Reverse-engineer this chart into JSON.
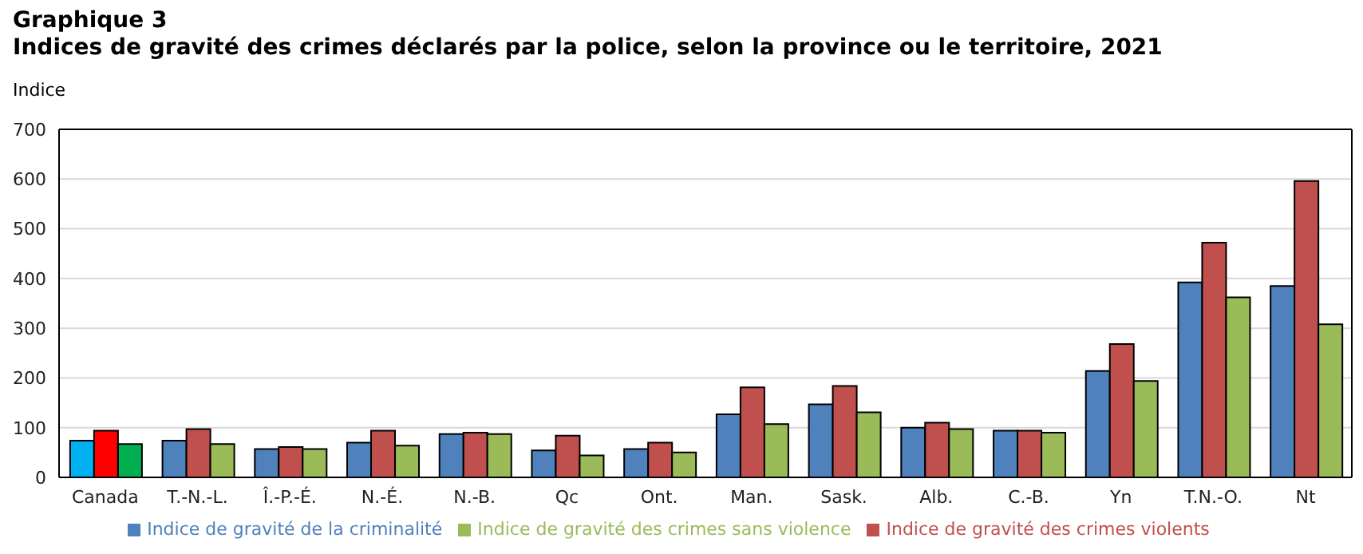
{
  "chart_data": {
    "type": "bar",
    "title": "Graphique 3",
    "subtitle": "Indices de gravité des crimes déclarés par la police, selon la province ou le territoire, 2021",
    "ylabel": "Indice",
    "categories": [
      "Canada",
      "T.-N.-L.",
      "Î.-P.-É.",
      "N.-É.",
      "N.-B.",
      "Qc",
      "Ont.",
      "Man.",
      "Sask.",
      "Alb.",
      "C.-B.",
      "Yn",
      "T.N.-O.",
      "Nt"
    ],
    "series": [
      {
        "name": "Indice de gravité de la criminalité",
        "color": "#4f81bd",
        "colors": [
          "#00b0f0",
          "#4f81bd",
          "#4f81bd",
          "#4f81bd",
          "#4f81bd",
          "#4f81bd",
          "#4f81bd",
          "#4f81bd",
          "#4f81bd",
          "#4f81bd",
          "#4f81bd",
          "#4f81bd",
          "#4f81bd",
          "#4f81bd"
        ],
        "values": [
          74,
          74,
          57,
          70,
          87,
          54,
          57,
          127,
          147,
          100,
          94,
          214,
          392,
          385
        ]
      },
      {
        "name": "Indice de gravité des crimes violents",
        "color": "#c0504d",
        "colors": [
          "#ff0000",
          "#c0504d",
          "#c0504d",
          "#c0504d",
          "#c0504d",
          "#c0504d",
          "#c0504d",
          "#c0504d",
          "#c0504d",
          "#c0504d",
          "#c0504d",
          "#c0504d",
          "#c0504d",
          "#c0504d"
        ],
        "values": [
          94,
          97,
          61,
          94,
          90,
          84,
          70,
          181,
          184,
          110,
          94,
          268,
          472,
          596
        ]
      },
      {
        "name": "Indice de gravité des crimes sans violence",
        "color": "#9bbb59",
        "colors": [
          "#00b050",
          "#9bbb59",
          "#9bbb59",
          "#9bbb59",
          "#9bbb59",
          "#9bbb59",
          "#9bbb59",
          "#9bbb59",
          "#9bbb59",
          "#9bbb59",
          "#9bbb59",
          "#9bbb59",
          "#9bbb59",
          "#9bbb59"
        ],
        "values": [
          67,
          67,
          57,
          64,
          87,
          44,
          50,
          107,
          131,
          97,
          90,
          194,
          362,
          308
        ]
      }
    ],
    "ylim": [
      0,
      700
    ],
    "yticks": [
      0,
      100,
      200,
      300,
      400,
      500,
      600,
      700
    ],
    "grid": "y",
    "legend": "bottom"
  }
}
